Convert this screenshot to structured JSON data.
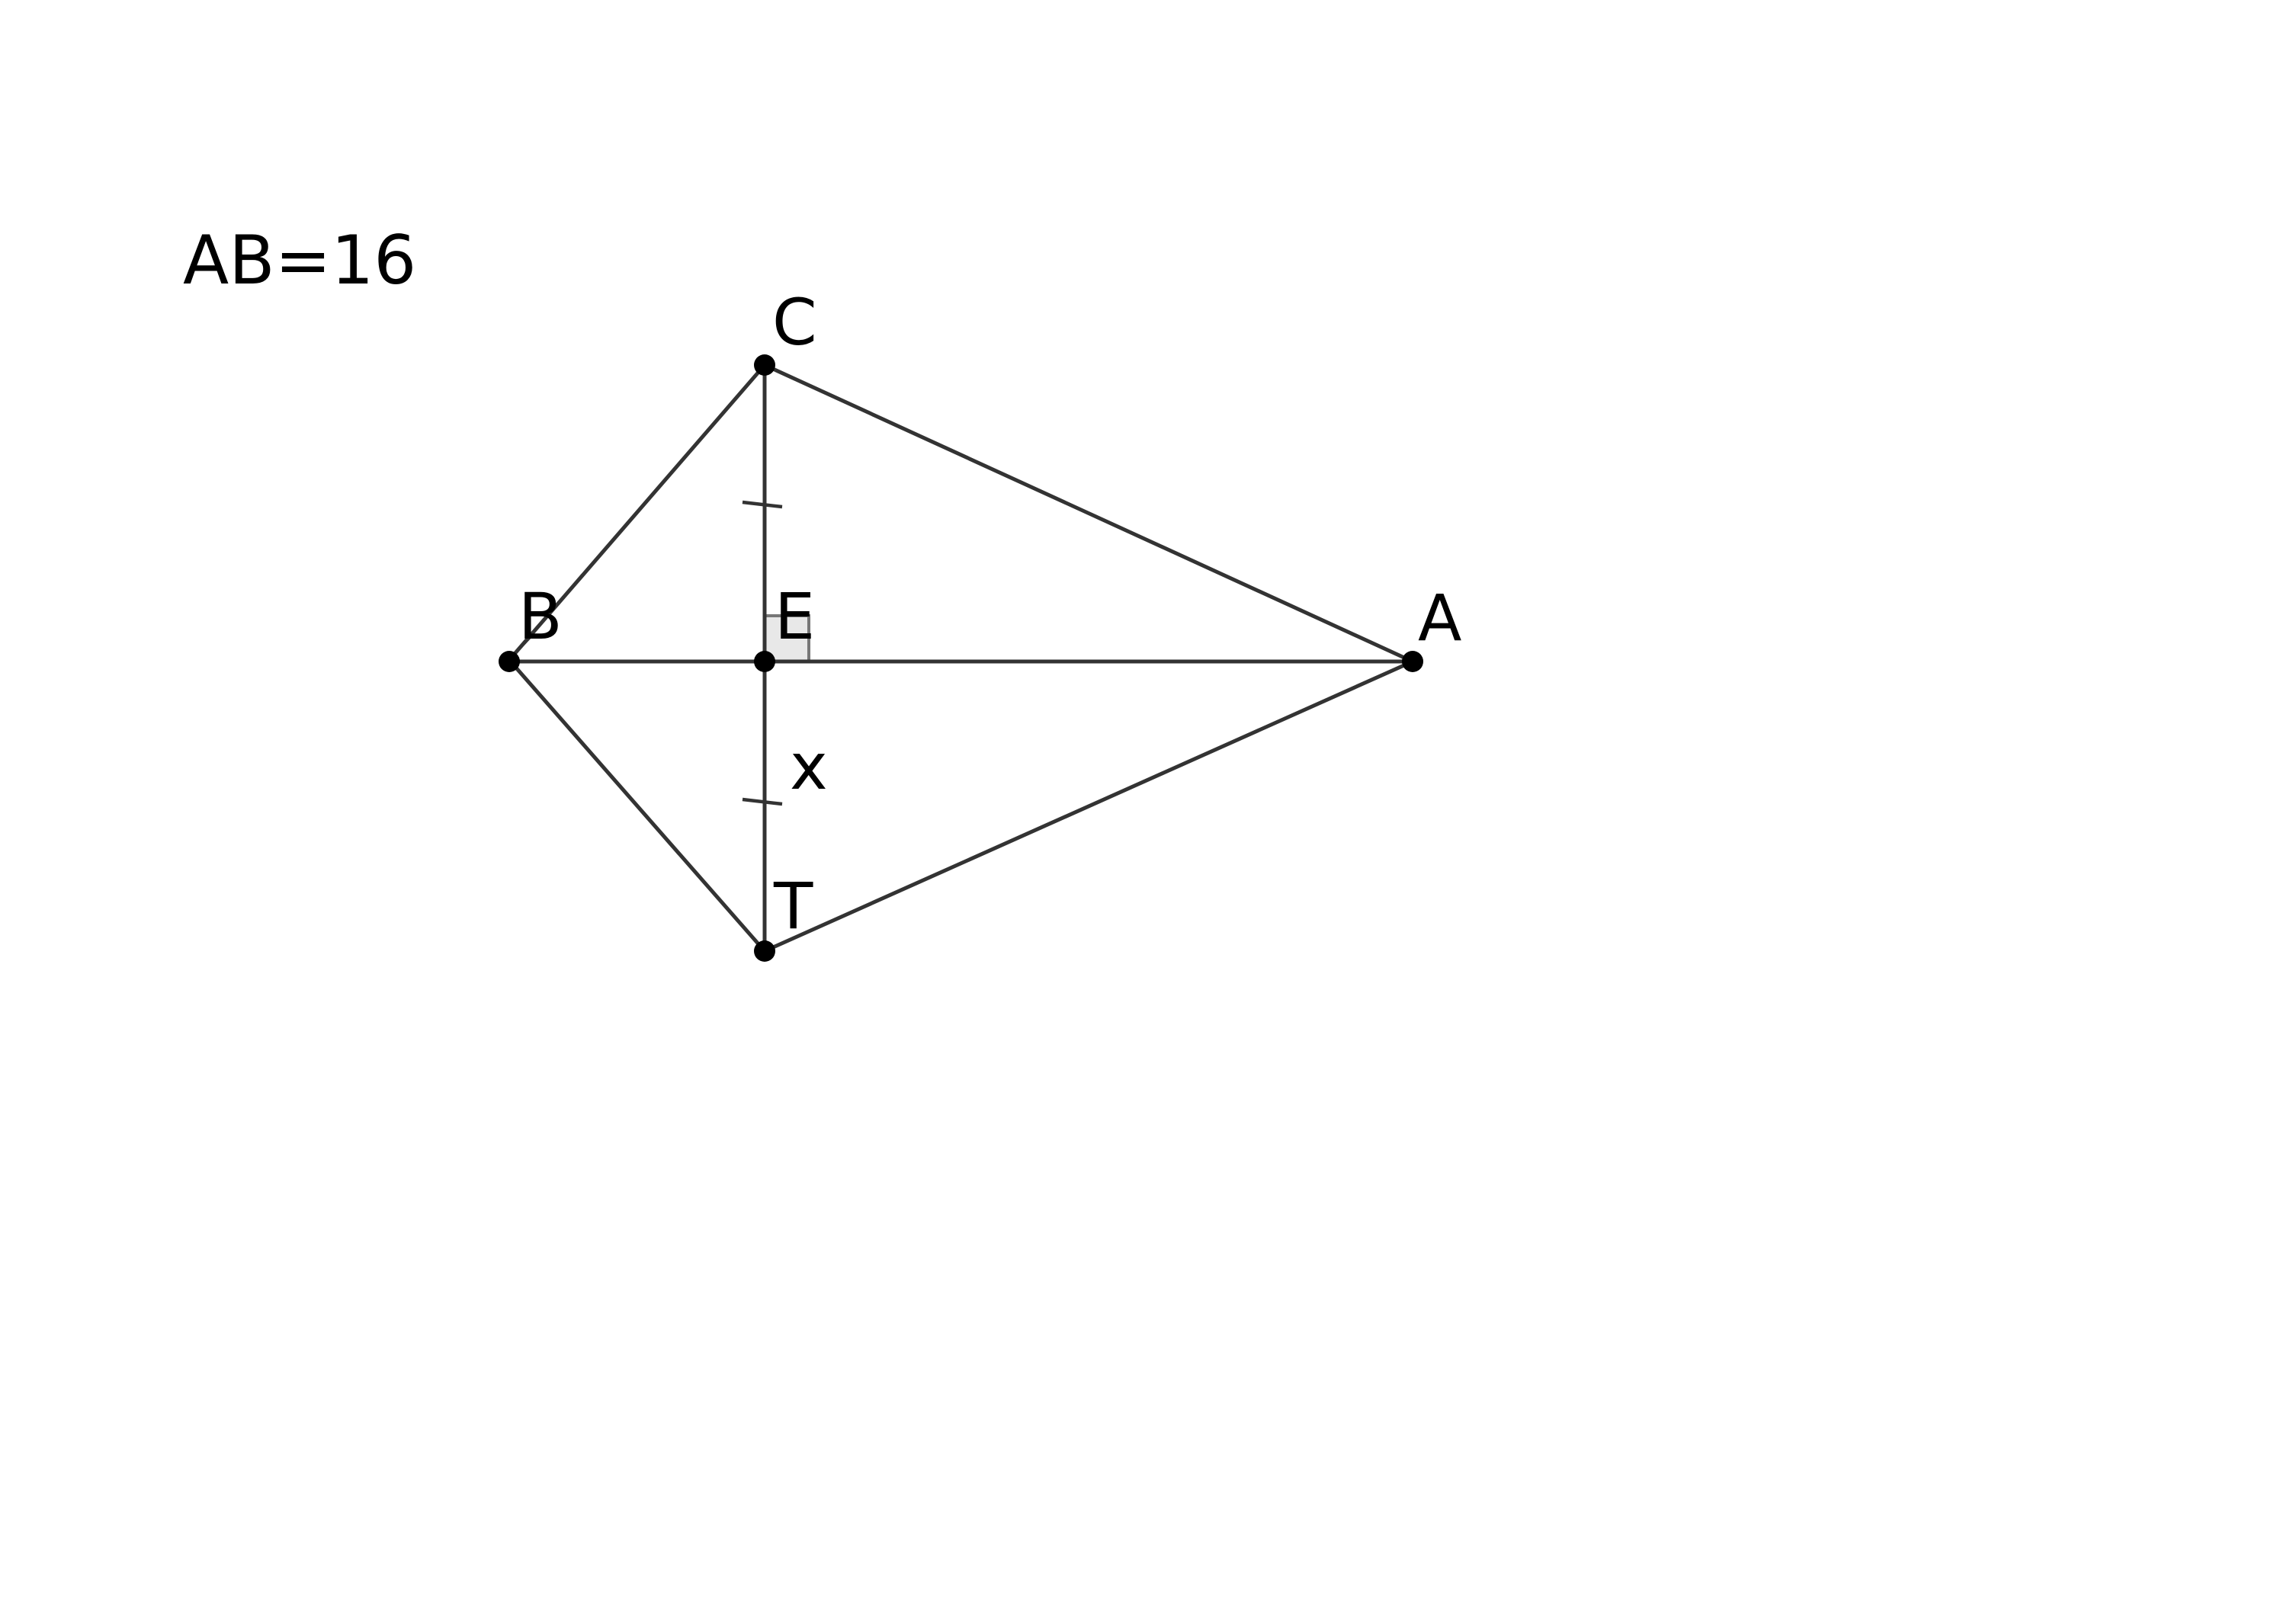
{
  "given_text": "AB=16",
  "labels": {
    "A": "A",
    "B": "B",
    "C": "C",
    "E": "E",
    "T": "T",
    "x": "x"
  },
  "colors": {
    "line": "#333333",
    "point": "#000000",
    "background": "#ffffff"
  }
}
